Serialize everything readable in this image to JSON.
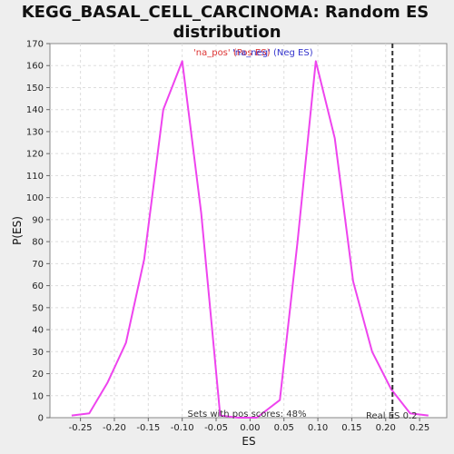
{
  "chart_data": {
    "type": "line",
    "title_line1": "KEGG_BASAL_CELL_CARCINOMA: Random ES",
    "title_line2": "distribution",
    "xlabel": "ES",
    "ylabel": "P(ES)",
    "xlim": [
      -0.295,
      0.29
    ],
    "ylim": [
      0,
      170
    ],
    "x_ticks": [
      -0.25,
      -0.2,
      -0.15,
      -0.1,
      -0.05,
      0.0,
      0.05,
      0.1,
      0.15,
      0.2,
      0.25
    ],
    "x_tick_labels": [
      "-0.25",
      "-0.20",
      "-0.15",
      "-0.10",
      "-0.05",
      "0.00",
      "0.05",
      "0.10",
      "0.15",
      "0.20",
      "0.25"
    ],
    "y_ticks": [
      0,
      10,
      20,
      30,
      40,
      50,
      60,
      70,
      80,
      90,
      100,
      110,
      120,
      130,
      140,
      150,
      160,
      170
    ],
    "grid": true,
    "series": [
      {
        "color": "#ee44ee",
        "points": [
          [
            -0.263,
            1
          ],
          [
            -0.237,
            2
          ],
          [
            -0.21,
            16
          ],
          [
            -0.183,
            34
          ],
          [
            -0.156,
            72
          ],
          [
            -0.128,
            140
          ],
          [
            -0.1,
            162
          ],
          [
            -0.072,
            93
          ],
          [
            -0.044,
            1
          ],
          [
            -0.017,
            0
          ],
          [
            0.01,
            0
          ],
          [
            0.044,
            8
          ],
          [
            0.07,
            80
          ],
          [
            0.097,
            162
          ],
          [
            0.125,
            127
          ],
          [
            0.152,
            62
          ],
          [
            0.18,
            30
          ],
          [
            0.208,
            13
          ],
          [
            0.236,
            2
          ],
          [
            0.263,
            1
          ]
        ]
      }
    ],
    "real_es": 0.21,
    "real_es_label": "Real ES 0.2",
    "pos_score_label": "Sets with pos scores: 48%",
    "legend": [
      {
        "text": "'na_pos' (Pos ES)",
        "color": "#dd3333"
      },
      {
        "text": "'na_neg' (Neg ES)",
        "color": "#3333cc"
      }
    ]
  }
}
